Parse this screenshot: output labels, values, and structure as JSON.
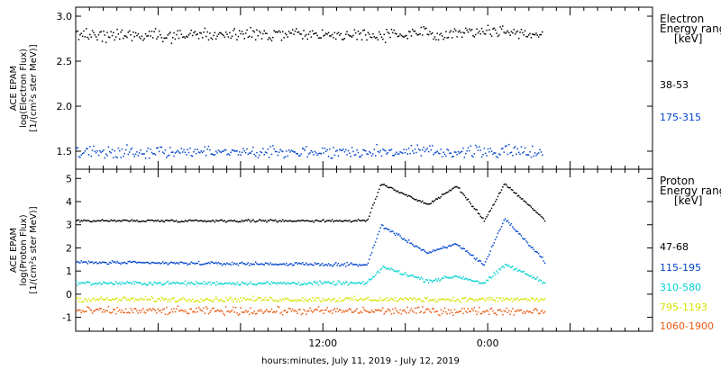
{
  "x_axis": {
    "label": "hours:minutes, July 11, 2019 - July 12, 2019",
    "range_hours": [
      0,
      42
    ],
    "ticks": [
      {
        "label": "12:00",
        "value": 18
      },
      {
        "label": "0:00",
        "value": 30
      }
    ]
  },
  "panels": {
    "electron": {
      "ylabel_lines": [
        "ACE EPAM",
        "log(Electron Flux)",
        "[1/(cm²s ster MeV)]"
      ],
      "ylim": [
        1.3,
        3.1
      ],
      "yticks": [
        "1.5",
        "2.0",
        "2.5",
        "3.0"
      ],
      "legend_title": [
        "Electron",
        "Energy range",
        "[keV]"
      ],
      "series": [
        {
          "label": "38-53",
          "color": "#000000",
          "base": 2.8,
          "noise": 0.05
        },
        {
          "label": "175-315",
          "color": "#0044cc",
          "base": 1.5,
          "noise": 0.05
        }
      ]
    },
    "proton": {
      "ylabel_lines": [
        "ACE EPAM",
        "log(Proton Flux)",
        "[1/(cm²s ster MeV)]"
      ],
      "ylim": [
        -1.6,
        5.4
      ],
      "yticks": [
        "-1",
        "0",
        "1",
        "2",
        "3",
        "4",
        "5"
      ],
      "legend_title": [
        "Proton",
        "Energy range",
        "[keV]"
      ],
      "series": [
        {
          "label": "47-68",
          "color": "#000000",
          "base": 3.2,
          "noise": 0.04
        },
        {
          "label": "115-195",
          "color": "#0044cc",
          "base": 1.4,
          "noise": 0.05
        },
        {
          "label": "310-580",
          "color": "#00d0d0",
          "base": 0.5,
          "noise": 0.06
        },
        {
          "label": "795-1193",
          "color": "#d8e000",
          "base": -0.2,
          "noise": 0.08
        },
        {
          "label": "1060-1900",
          "color": "#e85a10",
          "base": -0.7,
          "noise": 0.12
        }
      ]
    }
  },
  "chart_data": [
    {
      "type": "scatter",
      "title": "",
      "xlabel": "hours:minutes, July 11, 2019 - July 12, 2019",
      "ylabel": "ACE EPAM log(Electron Flux) [1/(cm²s ster MeV)]",
      "ylim": [
        1.3,
        3.1
      ],
      "grid": false,
      "series": [
        {
          "name": "38-53",
          "x_hours": [
            0,
            6,
            12,
            18,
            24,
            30,
            34
          ],
          "values": [
            2.8,
            2.8,
            2.8,
            2.8,
            2.8,
            2.85,
            2.8
          ]
        },
        {
          "name": "175-315",
          "x_hours": [
            0,
            6,
            12,
            18,
            24,
            30,
            34
          ],
          "values": [
            1.5,
            1.5,
            1.5,
            1.5,
            1.5,
            1.5,
            1.5
          ]
        }
      ]
    },
    {
      "type": "scatter",
      "title": "",
      "xlabel": "hours:minutes, July 11, 2019 - July 12, 2019",
      "ylabel": "ACE EPAM log(Proton Flux) [1/(cm²s ster MeV)]",
      "ylim": [
        -1.6,
        5.4
      ],
      "grid": false,
      "series": [
        {
          "name": "47-68",
          "x_hours": [
            0,
            21.2,
            22.2,
            25.6,
            27.7,
            29.7,
            31.2,
            34.2
          ],
          "values": [
            3.2,
            3.2,
            4.8,
            3.9,
            4.7,
            3.2,
            4.8,
            3.2
          ]
        },
        {
          "name": "115-195",
          "x_hours": [
            0,
            21.2,
            22.2,
            25.6,
            27.7,
            29.7,
            31.2,
            34.2
          ],
          "values": [
            1.4,
            1.3,
            3.0,
            1.8,
            2.2,
            1.3,
            3.3,
            1.4
          ]
        },
        {
          "name": "310-580",
          "x_hours": [
            0,
            21.2,
            22.3,
            25.6,
            27.7,
            29.7,
            31.3,
            34.2
          ],
          "values": [
            0.5,
            0.5,
            1.2,
            0.6,
            0.8,
            0.5,
            1.3,
            0.5
          ]
        },
        {
          "name": "795-1193",
          "x_hours": [
            0,
            12,
            24,
            34.2
          ],
          "values": [
            -0.2,
            -0.2,
            -0.2,
            -0.2
          ]
        },
        {
          "name": "1060-1900",
          "x_hours": [
            0,
            12,
            24,
            34.2
          ],
          "values": [
            -0.7,
            -0.7,
            -0.7,
            -0.7
          ]
        }
      ]
    }
  ]
}
